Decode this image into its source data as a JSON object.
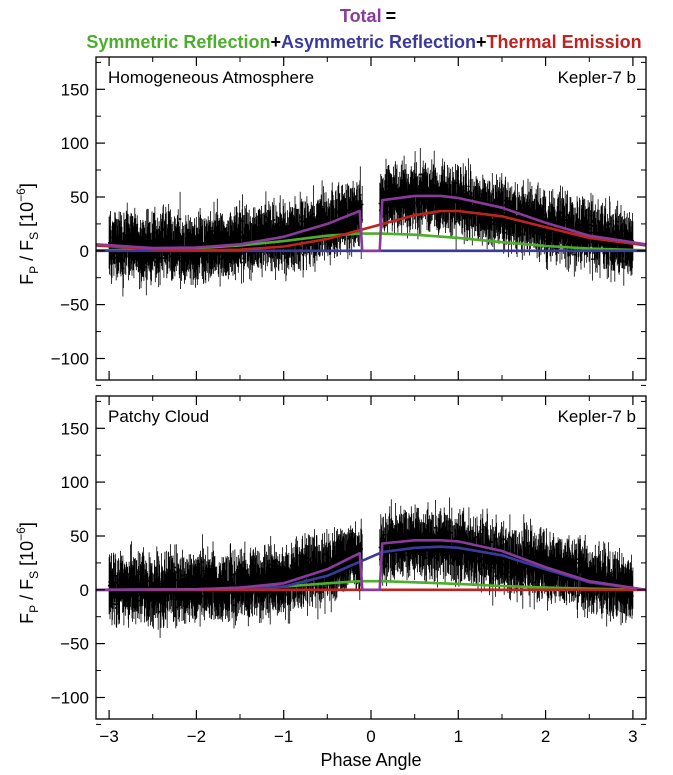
{
  "header": {
    "total_label": "Total",
    "equals": "=",
    "terms": [
      {
        "label": "Symmetric Reflection",
        "color": "#4cae2a"
      },
      {
        "label": "Asymmetric Reflection",
        "color": "#3a3a9e"
      },
      {
        "label": "Thermal Emission",
        "color": "#c0231f"
      }
    ],
    "plus": "+",
    "total_color": "#8a3a9a"
  },
  "chart_data": [
    {
      "type": "scatter",
      "panel_label": "Homogeneous Atmosphere",
      "planet_label": "Kepler-7 b",
      "xlabel": "",
      "ylabel_main": "F",
      "ylabel_sub1": "P",
      "ylabel_mid": " / F",
      "ylabel_sub2": "S",
      "ylabel_unit": " [10",
      "ylabel_exp": "−6",
      "ylabel_close": "]",
      "xlim": [
        -3.15,
        3.15
      ],
      "ylim": [
        -120,
        180
      ],
      "yticks": [
        -100,
        -50,
        0,
        50,
        100,
        150
      ],
      "ytick_labels": [
        "−100",
        "−50",
        "0",
        "50",
        "100",
        "150"
      ],
      "series": [
        {
          "key": "symmetric",
          "color": "#4cae2a",
          "x": [
            -3.15,
            -2.5,
            -2.0,
            -1.5,
            -1.0,
            -0.5,
            -0.13,
            0.13,
            0.5,
            1.0,
            1.5,
            2.0,
            2.5,
            3.15
          ],
          "y": [
            0.5,
            1,
            2.5,
            5,
            9,
            14,
            16,
            16,
            15,
            12,
            8,
            4.5,
            2,
            0.5
          ]
        },
        {
          "key": "asymmetric",
          "color": "#3a3a9e",
          "x": [
            -3.15,
            3.15
          ],
          "y": [
            0,
            0
          ]
        },
        {
          "key": "thermal",
          "color": "#c0231f",
          "x": [
            -3.15,
            -2.5,
            -2.0,
            -1.5,
            -1.0,
            -0.5,
            0.0,
            0.5,
            0.8,
            1.0,
            1.5,
            2.0,
            2.5,
            3.15
          ],
          "y": [
            5,
            1.5,
            0.5,
            1,
            4,
            11,
            22,
            33,
            37,
            37,
            32,
            22,
            12,
            5
          ]
        },
        {
          "key": "total",
          "color": "#8a3a9a",
          "x": [
            -3.15,
            -2.5,
            -2.0,
            -1.5,
            -1.0,
            -0.5,
            -0.13,
            -0.1,
            0.1,
            0.13,
            0.5,
            0.8,
            1.0,
            1.5,
            2.0,
            2.5,
            3.15
          ],
          "y": [
            6,
            2.5,
            3,
            6,
            13,
            25,
            37,
            0,
            0,
            47,
            51,
            51,
            49,
            40,
            26,
            14,
            6
          ]
        }
      ],
      "data_profile": {
        "x": [
          -3.0,
          -2.0,
          -1.0,
          -0.1,
          0.1,
          0.5,
          1.0,
          2.0,
          3.0
        ],
        "y": [
          5,
          3,
          12,
          35,
          45,
          50,
          45,
          25,
          6
        ]
      }
    },
    {
      "type": "scatter",
      "panel_label": "Patchy Cloud",
      "planet_label": "Kepler-7 b",
      "xlabel": "Phase Angle",
      "ylabel_main": "F",
      "ylabel_sub1": "P",
      "ylabel_mid": " / F",
      "ylabel_sub2": "S",
      "ylabel_unit": " [10",
      "ylabel_exp": "−6",
      "ylabel_close": "]",
      "xlim": [
        -3.15,
        3.15
      ],
      "ylim": [
        -120,
        180
      ],
      "xticks": [
        -3,
        -2,
        -1,
        0,
        1,
        2,
        3
      ],
      "xtick_labels": [
        "−3",
        "−2",
        "−1",
        "0",
        "1",
        "2",
        "3"
      ],
      "yticks": [
        -100,
        -50,
        0,
        50,
        100,
        150
      ],
      "ytick_labels": [
        "−100",
        "−50",
        "0",
        "50",
        "100",
        "150"
      ],
      "series": [
        {
          "key": "symmetric",
          "color": "#4cae2a",
          "x": [
            -3.15,
            -2.0,
            -1.5,
            -1.0,
            -0.5,
            -0.13,
            0.13,
            0.5,
            1.0,
            1.5,
            2.0,
            2.5,
            3.15
          ],
          "y": [
            0,
            0.5,
            1.5,
            3,
            6,
            8,
            8,
            7,
            5.5,
            3.5,
            2,
            1,
            0
          ]
        },
        {
          "key": "asymmetric",
          "color": "#3a3a9e",
          "x": [
            -3.15,
            -2.0,
            -1.5,
            -1.0,
            -0.5,
            -0.13,
            0.13,
            0.5,
            0.8,
            1.0,
            1.5,
            2.0,
            2.5,
            3.15
          ],
          "y": [
            0,
            0,
            0.5,
            3,
            13,
            26,
            35,
            39,
            40,
            39,
            32,
            19,
            7,
            0
          ]
        },
        {
          "key": "thermal",
          "color": "#c0231f",
          "x": [
            -3.15,
            3.15
          ],
          "y": [
            0,
            0
          ]
        },
        {
          "key": "total",
          "color": "#8a3a9a",
          "x": [
            -3.15,
            -2.0,
            -1.5,
            -1.0,
            -0.5,
            -0.13,
            -0.1,
            0.1,
            0.13,
            0.5,
            0.8,
            1.0,
            1.5,
            2.0,
            2.5,
            3.15
          ],
          "y": [
            0,
            0.5,
            2,
            6,
            19,
            34,
            0,
            0,
            43,
            46,
            46,
            45,
            36,
            21,
            8,
            0
          ]
        }
      ],
      "data_profile": {
        "x": [
          -3.0,
          -2.0,
          -1.0,
          -0.1,
          0.1,
          0.5,
          1.0,
          2.0,
          3.0
        ],
        "y": [
          0,
          2,
          8,
          30,
          40,
          45,
          40,
          20,
          0
        ]
      }
    }
  ]
}
